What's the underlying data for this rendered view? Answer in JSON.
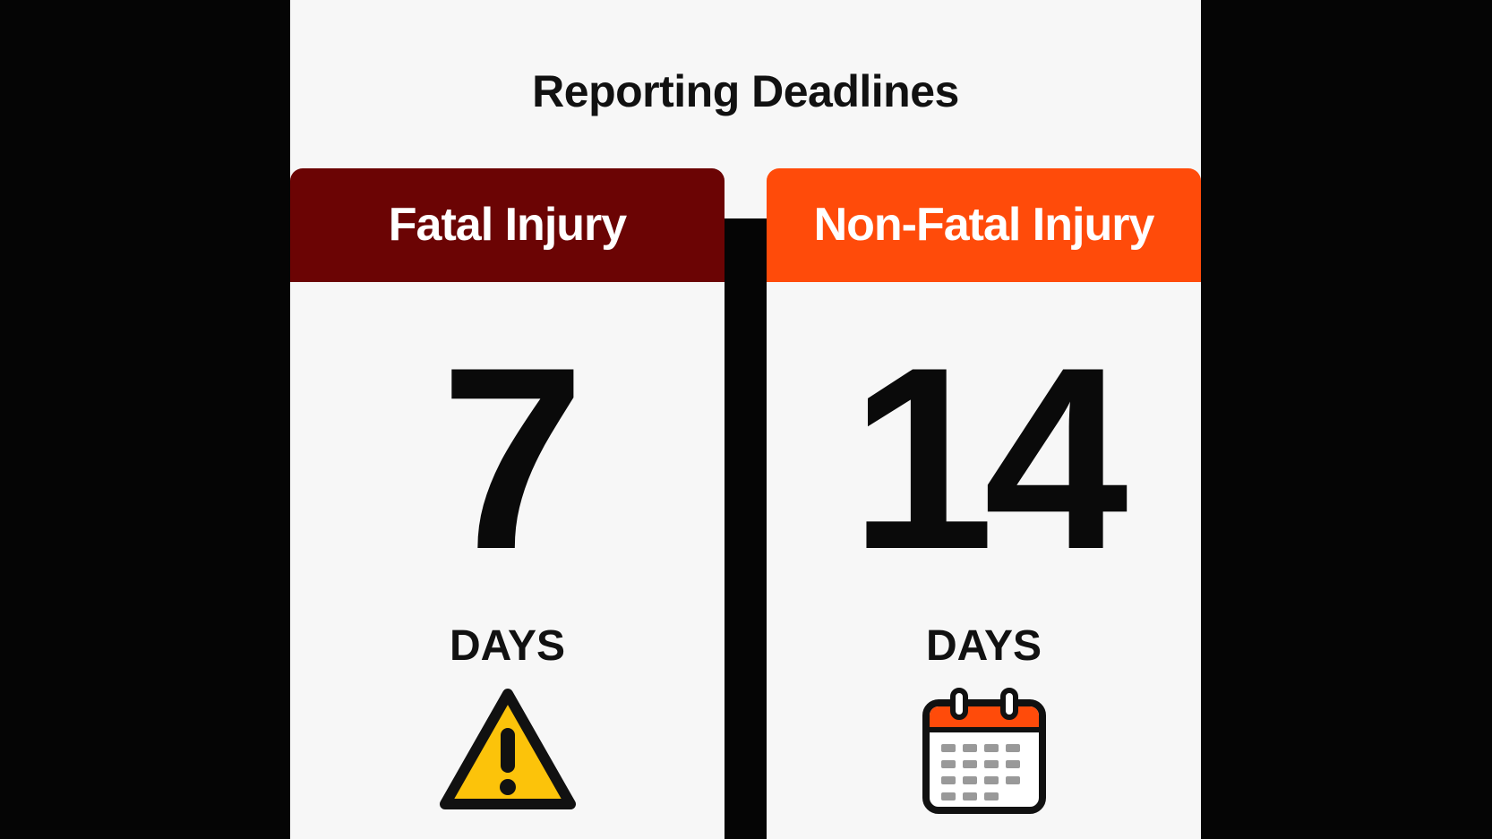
{
  "title": "Reporting Deadlines",
  "cards": [
    {
      "header": "Fatal Injury",
      "number": "7",
      "unit": "DAYS",
      "icon": "warning-icon",
      "color": "#6b0404"
    },
    {
      "header": "Non-Fatal Injury",
      "number": "14",
      "unit": "DAYS",
      "icon": "calendar-icon",
      "color": "#ff4b0a"
    }
  ],
  "colors": {
    "warning_yellow": "#fcc30a",
    "calendar_orange": "#ff4b0a"
  }
}
